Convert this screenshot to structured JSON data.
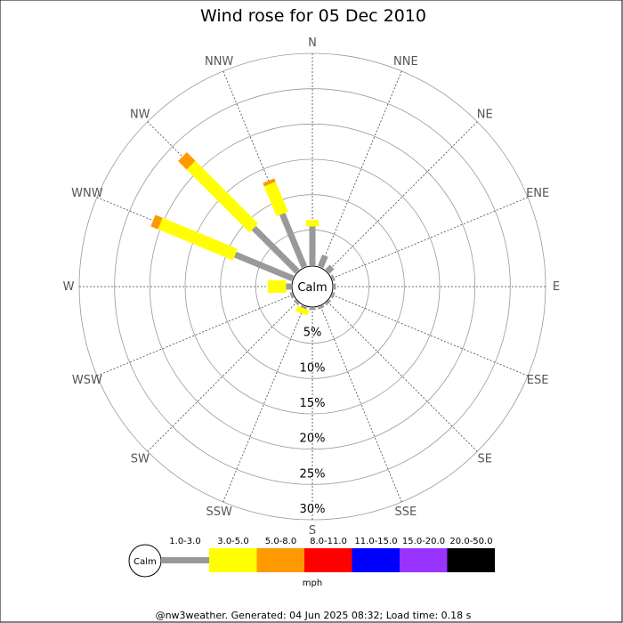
{
  "chart_data": {
    "type": "wind-rose",
    "title": "Wind rose for 05 Dec 2010",
    "directions": [
      "N",
      "NNE",
      "NE",
      "ENE",
      "E",
      "ESE",
      "SE",
      "SSE",
      "S",
      "SSW",
      "SW",
      "WSW",
      "W",
      "WNW",
      "NW",
      "NNW"
    ],
    "radial_ticks": [
      "5%",
      "10%",
      "15%",
      "20%",
      "25%",
      "30%"
    ],
    "radial_values": [
      5,
      10,
      15,
      20,
      25,
      30
    ],
    "rmax": 30,
    "calm_label": "Calm",
    "speed_bins": [
      {
        "label": "1.0-3.0",
        "color": "#999999"
      },
      {
        "label": "3.0-5.0",
        "color": "#ffff00"
      },
      {
        "label": "5.0-8.0",
        "color": "#ff9900"
      },
      {
        "label": "8.0-11.0",
        "color": "#ff0000"
      },
      {
        "label": "11.0-15.0",
        "color": "#0000ff"
      },
      {
        "label": "15.0-20.0",
        "color": "#9933ff"
      },
      {
        "label": "20.0-50.0",
        "color": "#000000"
      }
    ],
    "units": "mph",
    "series": [
      {
        "direction": "N",
        "values": [
          5.5,
          0.9,
          0,
          0,
          0,
          0,
          0
        ]
      },
      {
        "direction": "NNE",
        "values": [
          1.7,
          0,
          0,
          0,
          0,
          0,
          0
        ]
      },
      {
        "direction": "NE",
        "values": [
          0.9,
          0,
          0,
          0,
          0,
          0,
          0
        ]
      },
      {
        "direction": "ENE",
        "values": [
          0.3,
          0,
          0,
          0,
          0,
          0,
          0
        ]
      },
      {
        "direction": "E",
        "values": [
          0.3,
          0,
          0,
          0,
          0,
          0,
          0
        ]
      },
      {
        "direction": "ESE",
        "values": [
          0.3,
          0,
          0,
          0,
          0,
          0,
          0
        ]
      },
      {
        "direction": "SE",
        "values": [
          0.3,
          0,
          0,
          0,
          0,
          0,
          0
        ]
      },
      {
        "direction": "SSE",
        "values": [
          0.3,
          0,
          0,
          0,
          0,
          0,
          0
        ]
      },
      {
        "direction": "S",
        "values": [
          0.3,
          0,
          0,
          0,
          0,
          0,
          0
        ]
      },
      {
        "direction": "SSW",
        "values": [
          0.3,
          0.8,
          0,
          0,
          0,
          0,
          0
        ]
      },
      {
        "direction": "SW",
        "values": [
          0.3,
          0,
          0,
          0,
          0,
          0,
          0
        ]
      },
      {
        "direction": "WSW",
        "values": [
          0.3,
          0,
          0,
          0,
          0,
          0,
          0
        ]
      },
      {
        "direction": "W",
        "values": [
          0.7,
          2.6,
          0,
          0,
          0,
          0,
          0
        ]
      },
      {
        "direction": "WNW",
        "values": [
          8.8,
          11.5,
          1.1,
          0,
          0,
          0,
          0
        ]
      },
      {
        "direction": "NW",
        "values": [
          8.7,
          12.6,
          1.7,
          0,
          0,
          0,
          0
        ]
      },
      {
        "direction": "NNW",
        "values": [
          8.1,
          4.6,
          0.5,
          0,
          0,
          0,
          0
        ]
      }
    ]
  },
  "footer": "@nw3weather. Generated: 04 Jun 2025 08:32; Load time: 0.18 s"
}
